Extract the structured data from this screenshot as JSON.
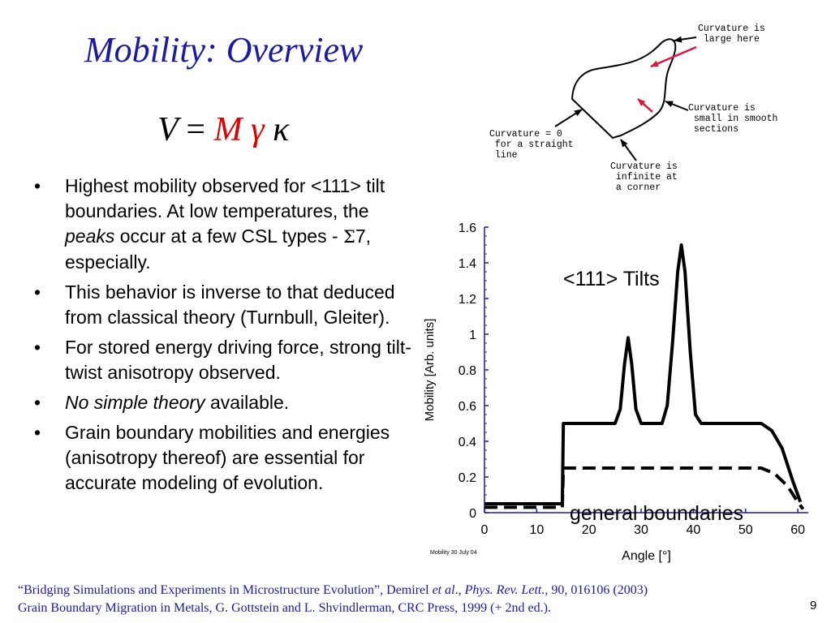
{
  "slide": {
    "title": "Mobility: Overview",
    "page_number": "9"
  },
  "equation": {
    "v": "V",
    "equals": "=",
    "m": "M",
    "gamma": "γ",
    "kappa": "κ"
  },
  "bullets": [
    {
      "p1": "Highest mobility observed for <111> tilt boundaries.  At low temperatures, the ",
      "em": "peaks",
      "p2": " occur at a few CSL types - ",
      "sigma": "Σ",
      "p3": "7, especially."
    },
    {
      "text": "This behavior is inverse to that deduced from classical theory (Turnbull, Gleiter)."
    },
    {
      "text": "For stored energy driving force, strong tilt-twist anisotropy observed."
    },
    {
      "em": "No simple theory",
      "rest": " available."
    },
    {
      "text": "Grain boundary mobilities and energies (anisotropy thereof) are essential for accurate modeling of evolution."
    }
  ],
  "diagram": {
    "callout_large": "Curvature is\n large here",
    "callout_small": "Curvature is\n small in smooth\n sections",
    "callout_zero": "Curvature = 0\n for a straight\n line",
    "callout_infinite": "Curvature is\n infinite at\n a corner",
    "arrow_color": "#e0143c"
  },
  "chart_data": {
    "type": "line",
    "xlabel": "Angle [°]",
    "ylabel": "Mobility [Arb. units]",
    "xlim": [
      0,
      62
    ],
    "ylim": [
      0,
      1.6
    ],
    "x_ticks": [
      "0",
      "10",
      "20",
      "30",
      "40",
      "50",
      "60"
    ],
    "y_ticks": [
      "0",
      "0.2",
      "0.4",
      "0.6",
      "0.8",
      "1",
      "1.2",
      "1.4",
      "1.6"
    ],
    "annotation_tilts": "<111> Tilts",
    "annotation_general": "general boundaries",
    "footnote": "Mobility  30 July 04",
    "axis_color": "#1a1aa8",
    "series": [
      {
        "name": "<111> Tilts",
        "style": "solid",
        "points": [
          [
            0,
            0.05
          ],
          [
            14.9,
            0.05
          ],
          [
            15.1,
            0.5
          ],
          [
            25,
            0.5
          ],
          [
            26,
            0.58
          ],
          [
            26.8,
            0.83
          ],
          [
            27.5,
            0.98
          ],
          [
            28.2,
            0.83
          ],
          [
            29,
            0.58
          ],
          [
            30,
            0.5
          ],
          [
            34,
            0.5
          ],
          [
            35,
            0.6
          ],
          [
            36,
            0.95
          ],
          [
            37,
            1.35
          ],
          [
            37.7,
            1.5
          ],
          [
            38.4,
            1.35
          ],
          [
            39.4,
            0.9
          ],
          [
            40.4,
            0.55
          ],
          [
            41.5,
            0.5
          ],
          [
            53,
            0.5
          ],
          [
            55,
            0.46
          ],
          [
            57,
            0.36
          ],
          [
            59,
            0.18
          ],
          [
            60.5,
            0.06
          ]
        ]
      },
      {
        "name": "general boundaries",
        "style": "dashed",
        "points": [
          [
            0,
            0.03
          ],
          [
            14.9,
            0.03
          ],
          [
            15.1,
            0.25
          ],
          [
            53,
            0.25
          ],
          [
            55.5,
            0.22
          ],
          [
            58,
            0.15
          ],
          [
            60,
            0.06
          ],
          [
            61,
            0.02
          ]
        ]
      }
    ]
  },
  "footer": {
    "line1_a": "“Bridging Simulations and Experiments in Microstructure Evolution”, Demirel ",
    "line1_etal": "et al",
    "line1_b": "., ",
    "line1_journal": "Phys. Rev. Lett.",
    "line1_c": ", 90, 016106 (2003)",
    "line2": "Grain Boundary Migration in Metals, G. Gottstein and L. Shvindlerman, CRC Press, 1999 (+ 2nd ed.)."
  }
}
